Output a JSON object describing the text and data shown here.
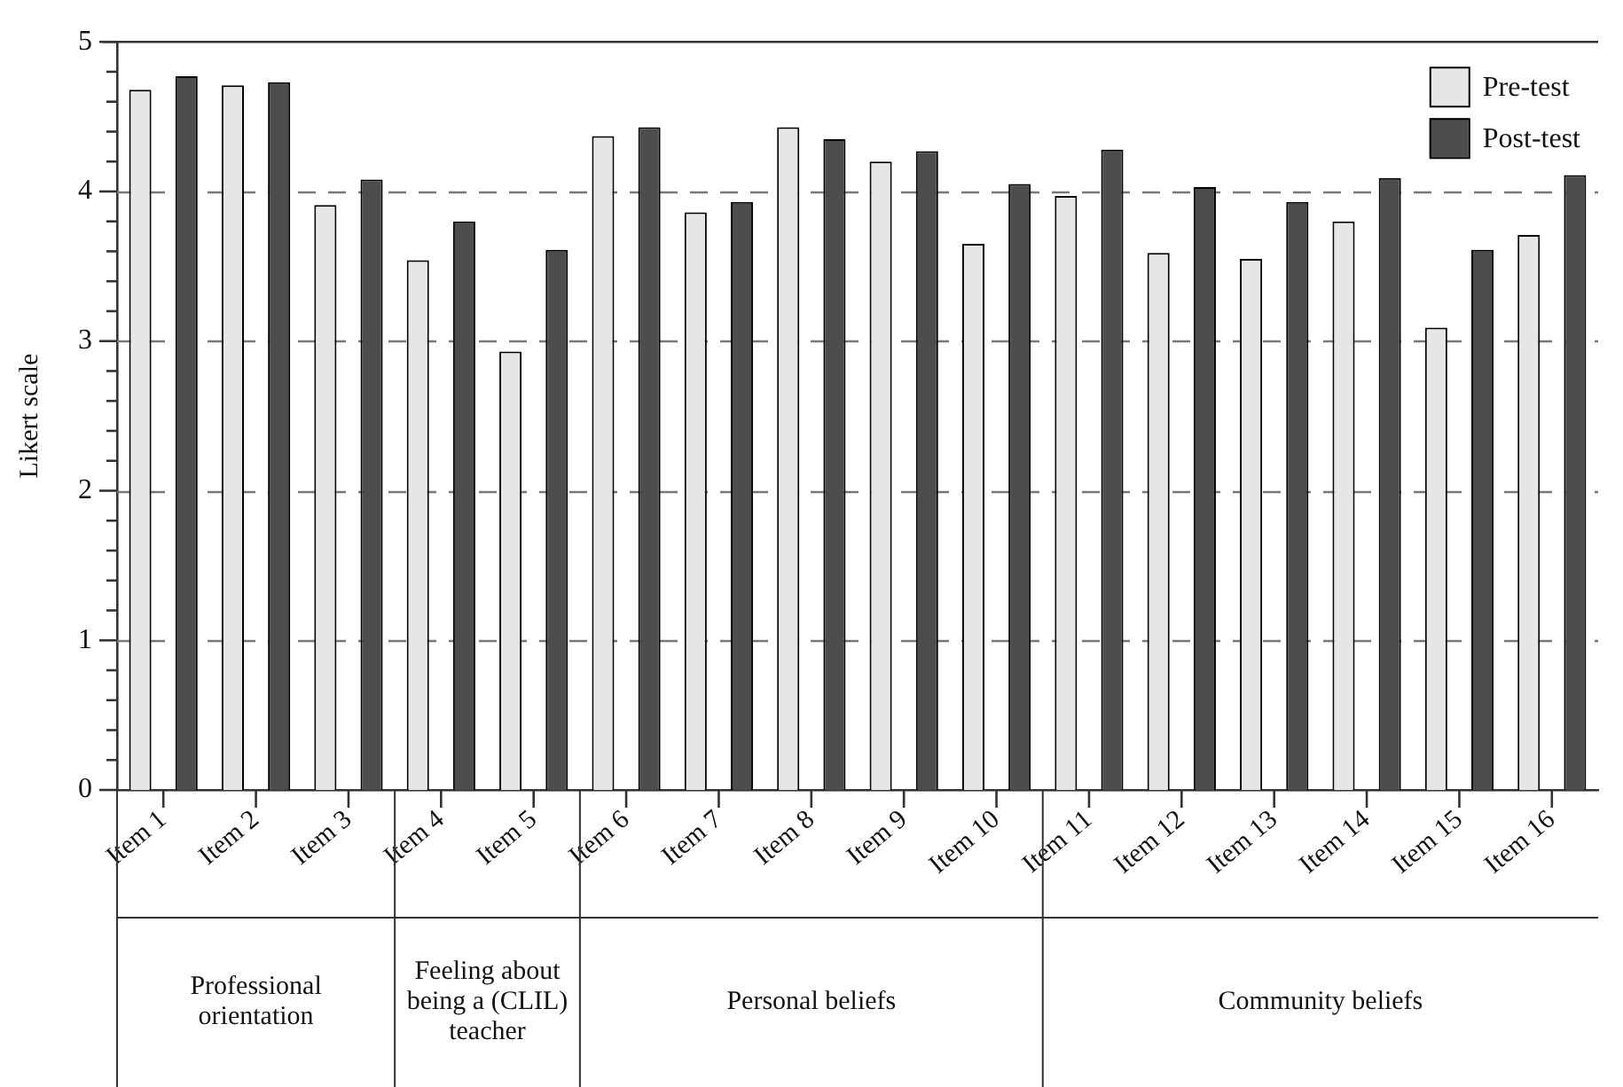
{
  "chart_data": {
    "type": "bar",
    "ylabel": "Likert scale",
    "categories": [
      "Item 1",
      "Item 2",
      "Item 3",
      "Item 4",
      "Item 5",
      "Item 6",
      "Item 7",
      "Item 8",
      "Item 9",
      "Item 10",
      "Item 11",
      "Item 12",
      "Item 13",
      "Item 14",
      "Item 15",
      "Item 16"
    ],
    "series": [
      {
        "name": "Pre-test",
        "color": "#e6e6e6",
        "values": [
          4.68,
          4.71,
          3.91,
          3.54,
          2.93,
          4.37,
          3.86,
          4.43,
          4.2,
          3.65,
          3.97,
          3.59,
          3.55,
          3.8,
          3.09,
          3.71
        ]
      },
      {
        "name": "Post-test",
        "color": "#4d4d4d",
        "values": [
          4.77,
          4.73,
          4.08,
          3.8,
          3.61,
          4.43,
          3.93,
          4.35,
          4.27,
          4.05,
          4.28,
          4.03,
          3.93,
          4.09,
          3.61,
          4.11
        ]
      }
    ],
    "ylim": [
      0,
      5
    ],
    "yticks": [
      0,
      {
        "value": 0.2,
        "label": null
      },
      {
        "value": 0.4,
        "label": null
      },
      {
        "value": 0.6,
        "label": null
      },
      {
        "value": 0.8,
        "label": null
      },
      1,
      {
        "value": 1.2,
        "label": null
      },
      {
        "value": 1.4,
        "label": null
      },
      {
        "value": 1.6,
        "label": null
      },
      {
        "value": 1.8,
        "label": null
      },
      2,
      {
        "value": 2.2,
        "label": null
      },
      {
        "value": 2.4,
        "label": null
      },
      {
        "value": 2.6,
        "label": null
      },
      {
        "value": 2.8,
        "label": null
      },
      3,
      {
        "value": 3.2,
        "label": null
      },
      {
        "value": 3.4,
        "label": null
      },
      {
        "value": 3.6,
        "label": null
      },
      {
        "value": 3.8,
        "label": null
      },
      4,
      {
        "value": 4.2,
        "label": null
      },
      {
        "value": 4.4,
        "label": null
      },
      {
        "value": 4.6,
        "label": null
      },
      {
        "value": 4.8,
        "label": null
      },
      5
    ],
    "grid": "y",
    "legend": "top right",
    "annotations": [
      "Professional orientation",
      "Feeling about being a (CLIL) teacher",
      "Personal beliefs",
      "Community beliefs"
    ]
  }
}
